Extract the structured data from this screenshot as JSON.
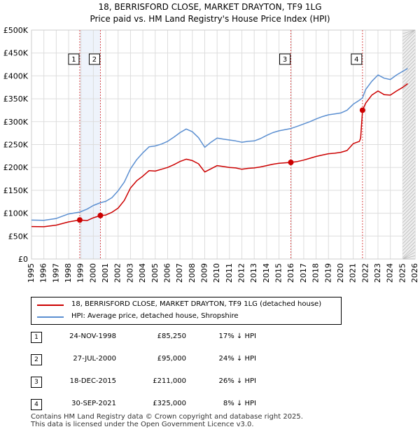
{
  "title": {
    "line1": "18, BERRISFORD CLOSE, MARKET DRAYTON, TF9 1LG",
    "line2": "Price paid vs. HM Land Registry's House Price Index (HPI)"
  },
  "chart_data": {
    "type": "line",
    "title": "18, BERRISFORD CLOSE, MARKET DRAYTON, TF9 1LG — Price paid vs. HM Land Registry's House Price Index (HPI)",
    "xlabel": "",
    "ylabel": "",
    "xlim": [
      1995,
      2026
    ],
    "ylim": [
      0,
      500000
    ],
    "x_ticks": [
      "1995",
      "1996",
      "1997",
      "1998",
      "1999",
      "2000",
      "2001",
      "2002",
      "2003",
      "2004",
      "2005",
      "2006",
      "2007",
      "2008",
      "2009",
      "2010",
      "2011",
      "2012",
      "2013",
      "2014",
      "2015",
      "2016",
      "2017",
      "2018",
      "2019",
      "2020",
      "2021",
      "2022",
      "2023",
      "2024",
      "2025",
      "2026"
    ],
    "y_ticks": [
      "£0",
      "£50K",
      "£100K",
      "£150K",
      "£200K",
      "£250K",
      "£300K",
      "£350K",
      "£400K",
      "£450K",
      "£500K"
    ],
    "y_tick_values": [
      0,
      50000,
      100000,
      150000,
      200000,
      250000,
      300000,
      350000,
      400000,
      450000,
      500000
    ],
    "grid": true,
    "forecast_shading_from": 2025.0,
    "series": [
      {
        "name": "18, BERRISFORD CLOSE, MARKET DRAYTON, TF9 1LG (detached house)",
        "color": "#cc0000",
        "points": [
          [
            1995.0,
            71000
          ],
          [
            1996.0,
            70500
          ],
          [
            1997.0,
            74000
          ],
          [
            1998.0,
            81000
          ],
          [
            1998.9,
            85250
          ],
          [
            1999.5,
            84000
          ],
          [
            2000.0,
            90000
          ],
          [
            2000.57,
            95000
          ],
          [
            2001.0,
            96000
          ],
          [
            2001.5,
            102000
          ],
          [
            2002.0,
            111000
          ],
          [
            2002.5,
            128000
          ],
          [
            2003.0,
            155000
          ],
          [
            2003.5,
            171000
          ],
          [
            2004.0,
            181000
          ],
          [
            2004.5,
            193000
          ],
          [
            2005.0,
            192000
          ],
          [
            2005.5,
            196000
          ],
          [
            2006.0,
            200000
          ],
          [
            2006.5,
            206000
          ],
          [
            2007.0,
            213000
          ],
          [
            2007.5,
            218000
          ],
          [
            2008.0,
            215000
          ],
          [
            2008.5,
            208000
          ],
          [
            2009.0,
            190000
          ],
          [
            2009.5,
            197000
          ],
          [
            2010.0,
            204000
          ],
          [
            2010.5,
            202000
          ],
          [
            2011.0,
            200000
          ],
          [
            2011.5,
            199000
          ],
          [
            2012.0,
            196000
          ],
          [
            2012.5,
            198000
          ],
          [
            2013.0,
            199000
          ],
          [
            2013.5,
            201000
          ],
          [
            2014.0,
            204000
          ],
          [
            2014.5,
            207000
          ],
          [
            2015.0,
            209000
          ],
          [
            2015.96,
            211000
          ],
          [
            2016.5,
            213000
          ],
          [
            2017.0,
            216000
          ],
          [
            2017.5,
            220000
          ],
          [
            2018.0,
            224000
          ],
          [
            2018.5,
            227000
          ],
          [
            2019.0,
            230000
          ],
          [
            2019.5,
            231000
          ],
          [
            2020.0,
            233000
          ],
          [
            2020.5,
            237000
          ],
          [
            2021.0,
            252000
          ],
          [
            2021.5,
            257000
          ],
          [
            2021.6,
            264000
          ],
          [
            2021.75,
            325000
          ],
          [
            2022.0,
            340000
          ],
          [
            2022.5,
            358000
          ],
          [
            2023.0,
            367000
          ],
          [
            2023.5,
            359000
          ],
          [
            2024.0,
            358000
          ],
          [
            2024.5,
            367000
          ],
          [
            2025.0,
            375000
          ],
          [
            2025.4,
            383000
          ]
        ]
      },
      {
        "name": "HPI: Average price, detached house, Shropshire",
        "color": "#5b8fd1",
        "points": [
          [
            1995.0,
            85000
          ],
          [
            1996.0,
            84500
          ],
          [
            1997.0,
            88500
          ],
          [
            1998.0,
            98500
          ],
          [
            1998.9,
            102500
          ],
          [
            1999.5,
            109000
          ],
          [
            2000.0,
            117000
          ],
          [
            2000.57,
            123000
          ],
          [
            2001.0,
            126000
          ],
          [
            2001.5,
            134000
          ],
          [
            2002.0,
            149000
          ],
          [
            2002.5,
            168000
          ],
          [
            2003.0,
            197000
          ],
          [
            2003.5,
            217000
          ],
          [
            2004.0,
            232000
          ],
          [
            2004.5,
            245000
          ],
          [
            2005.0,
            247000
          ],
          [
            2005.5,
            251000
          ],
          [
            2006.0,
            257000
          ],
          [
            2006.5,
            266000
          ],
          [
            2007.0,
            276000
          ],
          [
            2007.5,
            284000
          ],
          [
            2008.0,
            278000
          ],
          [
            2008.5,
            265000
          ],
          [
            2009.0,
            244000
          ],
          [
            2009.5,
            255000
          ],
          [
            2010.0,
            264000
          ],
          [
            2010.5,
            262000
          ],
          [
            2011.0,
            260000
          ],
          [
            2011.5,
            258000
          ],
          [
            2012.0,
            255000
          ],
          [
            2012.5,
            257000
          ],
          [
            2013.0,
            258000
          ],
          [
            2013.5,
            263000
          ],
          [
            2014.0,
            270000
          ],
          [
            2014.5,
            276000
          ],
          [
            2015.0,
            280000
          ],
          [
            2015.96,
            285000
          ],
          [
            2016.5,
            290000
          ],
          [
            2017.0,
            295000
          ],
          [
            2017.5,
            300000
          ],
          [
            2018.0,
            306000
          ],
          [
            2018.5,
            311000
          ],
          [
            2019.0,
            315000
          ],
          [
            2019.5,
            317000
          ],
          [
            2020.0,
            319000
          ],
          [
            2020.5,
            325000
          ],
          [
            2021.0,
            338000
          ],
          [
            2021.5,
            347000
          ],
          [
            2021.75,
            352000
          ],
          [
            2022.0,
            370000
          ],
          [
            2022.5,
            388000
          ],
          [
            2023.0,
            402000
          ],
          [
            2023.5,
            395000
          ],
          [
            2024.0,
            392000
          ],
          [
            2024.5,
            402000
          ],
          [
            2025.0,
            410000
          ],
          [
            2025.4,
            416000
          ]
        ]
      }
    ],
    "annotations": [
      {
        "label": "1",
        "x": 1998.9,
        "y": 85250
      },
      {
        "label": "2",
        "x": 2000.57,
        "y": 95000
      },
      {
        "label": "3",
        "x": 2015.96,
        "y": 211000
      },
      {
        "label": "4",
        "x": 2021.75,
        "y": 325000
      }
    ]
  },
  "legend": {
    "property_label": "18, BERRISFORD CLOSE, MARKET DRAYTON, TF9 1LG (detached house)",
    "hpi_label": "HPI: Average price, detached house, Shropshire",
    "property_color": "#cc0000",
    "hpi_color": "#5b8fd1"
  },
  "transactions": [
    {
      "num": "1",
      "date": "24-NOV-1998",
      "price": "£85,250",
      "hpi": "17% ↓ HPI"
    },
    {
      "num": "2",
      "date": "27-JUL-2000",
      "price": "£95,000",
      "hpi": "24% ↓ HPI"
    },
    {
      "num": "3",
      "date": "18-DEC-2015",
      "price": "£211,000",
      "hpi": "26% ↓ HPI"
    },
    {
      "num": "4",
      "date": "30-SEP-2021",
      "price": "£325,000",
      "hpi": "8% ↓ HPI"
    }
  ],
  "footer": {
    "line1": "Contains HM Land Registry data © Crown copyright and database right 2025.",
    "line2": "This data is licensed under the Open Government Licence v3.0."
  }
}
